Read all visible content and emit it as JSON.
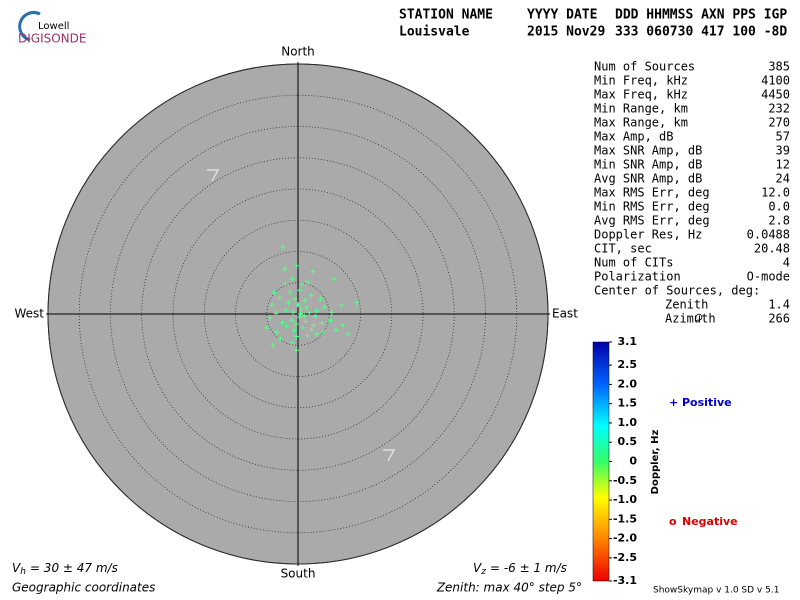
{
  "logo": {
    "top": "Lowell",
    "bottom": "DIGISONDE"
  },
  "header": {
    "columns": [
      "STATION NAME",
      "YYYY DATE",
      "DDD HHMMSS AXN PPS IGP"
    ],
    "values": [
      "Louisvale",
      "2015 Nov29",
      "333 060730 417 100 -8D"
    ]
  },
  "stats": [
    [
      "Num of Sources",
      385
    ],
    [
      "Min Freq, kHz",
      4100
    ],
    [
      "Max Freq, kHz",
      4450
    ],
    [
      "Min Range, km",
      232
    ],
    [
      "Max Range, km",
      270
    ],
    [
      "Max Amp, dB",
      57
    ],
    [
      "Max SNR Amp, dB",
      39
    ],
    [
      "Min SNR Amp, dB",
      12
    ],
    [
      "Avg SNR Amp, dB",
      24
    ],
    [
      "Max RMS Err, deg",
      "12.0"
    ],
    [
      "Min RMS Err, deg",
      "0.0"
    ],
    [
      "Avg RMS Err, deg",
      2.8
    ],
    [
      "Doppler Res, Hz",
      0.0488
    ],
    [
      "CIT, sec",
      20.48
    ],
    [
      "Num of CITs",
      4
    ],
    [
      "Polarization",
      "O-mode"
    ]
  ],
  "center": {
    "title": "Center of Sources, deg:",
    "rows": [
      [
        "Zenith",
        1.4
      ],
      [
        "Azimuth",
        266
      ]
    ]
  },
  "chart_data": {
    "type": "skymap",
    "directions": {
      "north": "North",
      "south": "South",
      "east": "East",
      "west": "West"
    },
    "rlim": [
      0,
      40
    ],
    "rings": [
      5,
      10,
      15,
      20,
      25,
      30,
      35,
      40
    ],
    "series": [
      {
        "color": "#55ff88",
        "x": [
          -2.4,
          -0.2,
          -2.1,
          1.6,
          5.8,
          -3.8,
          -2.9,
          0.6,
          2.1,
          -1.3,
          0.3,
          1.1,
          -0.5,
          9.4,
          7.0,
          4.2,
          3.0,
          1.8,
          0.5,
          -0.8,
          -1.9,
          -3.5,
          -4.5,
          -2.5,
          -1.0,
          0.2,
          1.2,
          2.5,
          3.8,
          5.2,
          7.2,
          6.1,
          4.0,
          2.2,
          0.8,
          -0.6,
          -1.8,
          -3.4,
          -5.0,
          1.5,
          -0.2,
          3.0,
          -1.0,
          -0.2,
          -4.0,
          8.0,
          0.4,
          1.0,
          -0.3,
          2.8,
          -2.0,
          0.0,
          1.4,
          -1.5,
          3.6,
          -4.2,
          5.4,
          -0.9,
          2.4,
          -2.8
        ],
        "y": [
          10.7,
          7.7,
          7.2,
          5.1,
          5.6,
          3.4,
          2.6,
          4.8,
          3.0,
          3.5,
          3.8,
          2.2,
          2.4,
          1.8,
          1.4,
          1.1,
          0.5,
          0.2,
          0.8,
          0.3,
          0.6,
          0.1,
          -0.6,
          -1.4,
          -1.0,
          -0.5,
          -1.2,
          -1.8,
          -1.5,
          -1.0,
          -1.8,
          -2.6,
          -2.9,
          -2.5,
          -2.2,
          -2.6,
          -2.0,
          -2.9,
          -2.2,
          -3.5,
          -3.6,
          -3.2,
          -4.6,
          -5.8,
          -5.0,
          -3.2,
          0.0,
          -0.3,
          -1.6,
          -0.4,
          4.8,
          1.5,
          1.0,
          1.8,
          2.4,
          1.4,
          0.2,
          5.6,
          6.8,
          -4.0
        ]
      }
    ],
    "colorbar": {
      "label": "Doppler, Hz",
      "lim": [
        -3.1,
        3.1
      ],
      "ticks": [
        3.1,
        2.5,
        {
          "value": 2,
          "label": "2.0"
        },
        1.5,
        {
          "value": 1,
          "label": "1.0"
        },
        0.5,
        0,
        -0.5,
        {
          "value": -1,
          "label": "-1.0"
        },
        -1.5,
        {
          "value": -2,
          "label": "-2.0"
        },
        -2.5,
        -3.1
      ]
    },
    "legend": [
      {
        "symbol": "+",
        "label": "Positive",
        "color": "#0000cc"
      },
      {
        "symbol": "o",
        "label": "Negative",
        "color": "#dd0000"
      }
    ]
  },
  "footer": {
    "vh": {
      "symbol": "V",
      "sub": "h",
      "text": "= 30 ± 47 m/s"
    },
    "vz": {
      "symbol": "V",
      "sub": "z",
      "text": "= -6 ± 1 m/s"
    },
    "coords": "Geographic coordinates",
    "zenith": "Zenith: max 40°  step 5°",
    "version": "ShowSkymap v 1.0  SD v 5.1"
  }
}
